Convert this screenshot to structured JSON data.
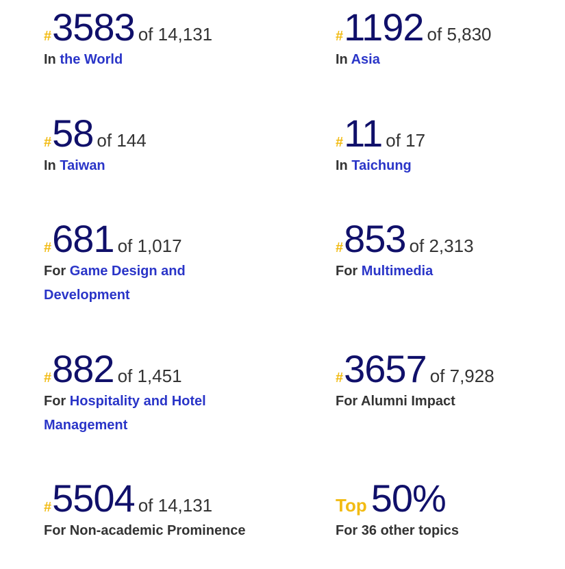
{
  "rankings": [
    {
      "symbol": "#",
      "rank": "3583",
      "of": "of 14,131",
      "prefix": "In",
      "link": "the World",
      "text": ""
    },
    {
      "symbol": "#",
      "rank": "1192",
      "of": "of 5,830",
      "prefix": "In",
      "link": "Asia",
      "text": ""
    },
    {
      "symbol": "#",
      "rank": "58",
      "of": "of 144",
      "prefix": "In",
      "link": "Taiwan",
      "text": ""
    },
    {
      "symbol": "#",
      "rank": "11",
      "of": "of 17",
      "prefix": "In",
      "link": "Taichung",
      "text": ""
    },
    {
      "symbol": "#",
      "rank": "681",
      "of": "of 1,017",
      "prefix": "For",
      "link": "Game Design and Development",
      "text": ""
    },
    {
      "symbol": "#",
      "rank": "853",
      "of": "of 2,313",
      "prefix": "For",
      "link": "Multimedia",
      "text": ""
    },
    {
      "symbol": "#",
      "rank": "882",
      "of": "of 1,451",
      "prefix": "For",
      "link": "Hospitality and Hotel Management",
      "text": ""
    },
    {
      "symbol": "#",
      "rank": "3657",
      "of": "of 7,928",
      "prefix": "For",
      "link": "",
      "text": "Alumni Impact"
    },
    {
      "symbol": "#",
      "rank": "5504",
      "of": "of 14,131",
      "prefix": "For",
      "link": "",
      "text": "Non-academic Prominence"
    }
  ],
  "top_summary": {
    "label": "Top",
    "value": "50%",
    "caption": "For 36 other topics"
  },
  "colors": {
    "rank": "#10106a",
    "hash": "#f2bb13",
    "link": "#2a35c8",
    "text": "#333333"
  }
}
